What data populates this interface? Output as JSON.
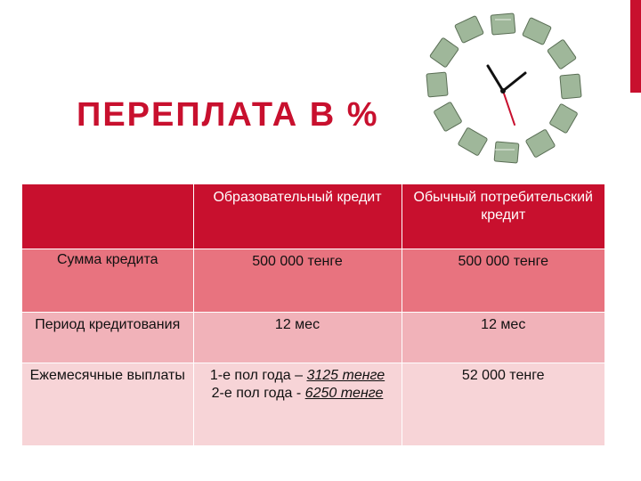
{
  "title": "ПЕРЕПЛАТА В %",
  "image": {
    "icon": "money-clock-icon"
  },
  "colors": {
    "accent": "#c8102e",
    "header_bg": "#c8102e",
    "row1_bg": "#e8737f",
    "row2_bg": "#f1b2b9",
    "row3_bg": "#f7d4d7"
  },
  "table": {
    "headers": [
      "",
      "Образовательный кредит",
      "Обычный потребительский кредит"
    ],
    "rows": [
      {
        "label": "Сумма кредита",
        "edu": "500 000 тенге",
        "consumer": "500 000 тенге"
      },
      {
        "label": "Период кредитования",
        "edu": "12 мес",
        "consumer": "12 мес"
      },
      {
        "label": "Ежемесячные выплаты",
        "edu_line1_prefix": "1-е пол года – ",
        "edu_line1_value": "3125 тенге",
        "edu_line2_prefix": "2-е пол года - ",
        "edu_line2_value": "6250 тенге",
        "consumer": "52 000 тенге"
      }
    ]
  }
}
